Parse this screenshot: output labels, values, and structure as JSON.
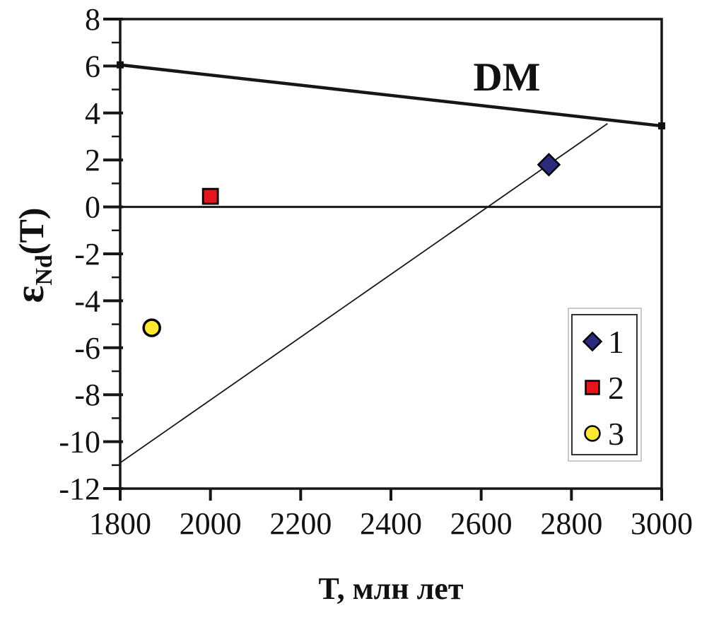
{
  "page": {
    "background": "#ffffff"
  },
  "chart_data": {
    "type": "scatter",
    "title": "",
    "xlabel": "T, млн лет",
    "ylabel": {
      "text": "εNd(T)",
      "symbol": "ε",
      "subscript": "Nd",
      "suffix": "(T)"
    },
    "xlim": [
      1800,
      3000
    ],
    "ylim": [
      -12,
      8
    ],
    "grid": false,
    "x_ticks": [
      1800,
      2000,
      2200,
      2400,
      2600,
      2800,
      3000
    ],
    "y_ticks_major": [
      8,
      6,
      4,
      2,
      0,
      -2,
      -4,
      -6,
      -8,
      -10,
      -12
    ],
    "y_ticks_minor": [
      7,
      5,
      3,
      1,
      -1,
      -3,
      -5,
      -7,
      -9,
      -11
    ],
    "lines": [
      {
        "name": "dm-line",
        "label": "DM",
        "label_anchor": [
          2655,
          4.7
        ],
        "points": [
          [
            1800,
            6.05
          ],
          [
            3000,
            3.45
          ]
        ],
        "stroke_width": 4.5,
        "color": "#161616",
        "end_markers": true
      },
      {
        "name": "zero-line",
        "label": "",
        "points": [
          [
            1800,
            0
          ],
          [
            3000,
            0
          ]
        ],
        "stroke_width": 3,
        "color": "#161616",
        "end_markers": false
      },
      {
        "name": "evolution-line",
        "label": "",
        "points": [
          [
            1800,
            -10.9
          ],
          [
            2880,
            3.55
          ]
        ],
        "stroke_width": 1.8,
        "color": "#161616",
        "end_markers": false
      }
    ],
    "series": [
      {
        "name": "1",
        "marker": "diamond",
        "fill": "#2b2b7e",
        "stroke": "#000000",
        "points": [
          [
            2750,
            1.8
          ]
        ]
      },
      {
        "name": "2",
        "marker": "square",
        "fill": "#e8141c",
        "stroke": "#000000",
        "points": [
          [
            2000,
            0.45
          ]
        ]
      },
      {
        "name": "3",
        "marker": "circle",
        "fill": "#ffe92e",
        "stroke": "#000000",
        "points": [
          [
            1870,
            -5.15
          ]
        ]
      }
    ],
    "legend": {
      "position": "bottom-right",
      "entries": [
        {
          "label": "1",
          "marker": "diamond",
          "fill": "#2b2b7e"
        },
        {
          "label": "2",
          "marker": "square",
          "fill": "#e8141c"
        },
        {
          "label": "3",
          "marker": "circle",
          "fill": "#ffe92e"
        }
      ]
    }
  }
}
